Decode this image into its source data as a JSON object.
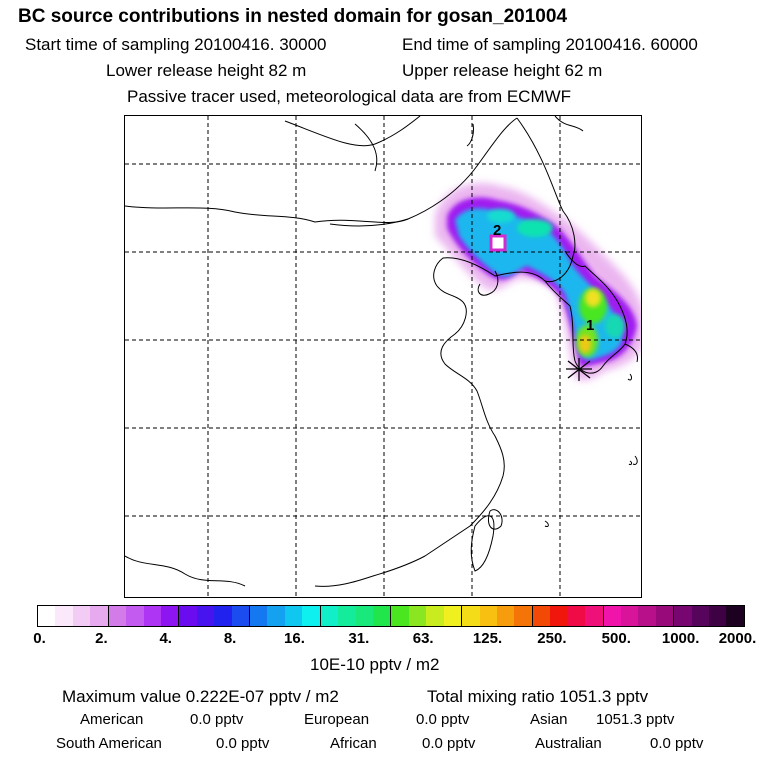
{
  "header": {
    "title": "BC  source contributions in nested domain for gosan_201004",
    "start_label": "Start time of sampling 20100416. 30000",
    "end_label": "End time of sampling 20100416. 60000",
    "lower_label": "Lower release height   82 m",
    "upper_label": "Upper release height   62 m",
    "note": "Passive tracer used, meteorological data are from ECMWF"
  },
  "map": {
    "markers": [
      {
        "label": "1"
      },
      {
        "label": "2"
      }
    ]
  },
  "colorbar": {
    "ticks": [
      "0.",
      "2.",
      "4.",
      "8.",
      "16.",
      "31.",
      "63.",
      "125.",
      "250.",
      "500.",
      "1000.",
      "2000."
    ],
    "unit": "10E-10 pptv / m2",
    "colors": [
      "#ffffff",
      "#fbe8fb",
      "#f3ccf5",
      "#e8aaef",
      "#d37be9",
      "#c35bf0",
      "#ae35f4",
      "#8f14f2",
      "#6b0cf0",
      "#4714ef",
      "#2222ee",
      "#1a4cf0",
      "#1478f0",
      "#14a2f0",
      "#10c8ef",
      "#0ef0f0",
      "#10efc8",
      "#14ec9c",
      "#19e97a",
      "#20e64c",
      "#4ae620",
      "#8ae620",
      "#c8ec1e",
      "#f0f020",
      "#f5dc18",
      "#f8c010",
      "#f79c0c",
      "#f47408",
      "#f24a06",
      "#f0160c",
      "#f00a46",
      "#f0107a",
      "#f014aa",
      "#d8149a",
      "#b8108a",
      "#980a7a",
      "#780670",
      "#56045c",
      "#3e0244",
      "#1c0120"
    ]
  },
  "stats": {
    "max_label": "Maximum value  0.222E-07 pptv / m2",
    "total_label": "Total mixing ratio     1051.3 pptv",
    "rows": [
      [
        {
          "name": "American",
          "value": "0.0 pptv"
        },
        {
          "name": "European",
          "value": "0.0 pptv"
        },
        {
          "name": "Asian",
          "value": "1051.3 pptv"
        }
      ],
      [
        {
          "name": "South American",
          "value": "0.0 pptv"
        },
        {
          "name": "African",
          "value": "0.0 pptv"
        },
        {
          "name": "Australian",
          "value": "0.0 pptv"
        }
      ]
    ]
  }
}
